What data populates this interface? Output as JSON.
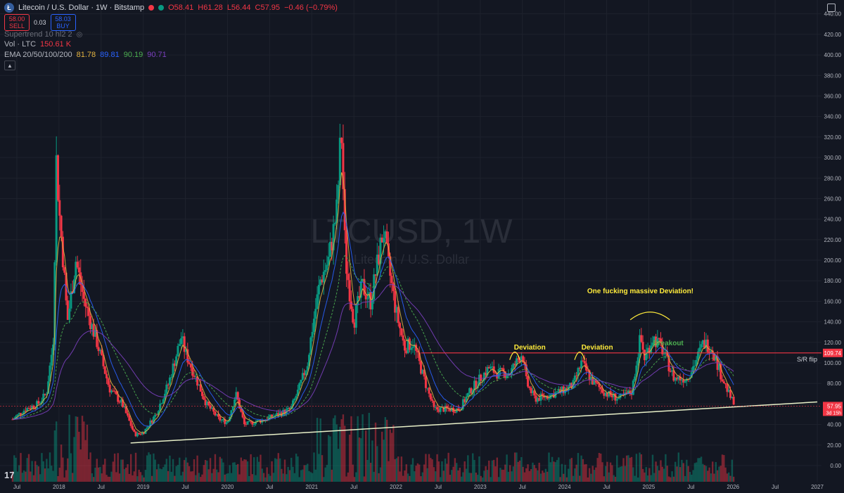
{
  "header": {
    "symbol_title": "Litecoin / U.S. Dollar · 1W · Bitstamp",
    "coin_letter": "Ł",
    "open": "O58.41",
    "high": "H61.28",
    "low": "L56.44",
    "close": "C57.95",
    "change": "−0.46 (−0.79%)",
    "sell_price": "58.00",
    "sell_label": "SELL",
    "spread": "0.03",
    "buy_price": "58.03",
    "buy_label": "BUY",
    "supertrend": "Supertrend 10 hl2 2",
    "vol_label": "Vol · LTC",
    "vol_value": "150.61 K",
    "ema_label": "EMA 20/50/100/200",
    "ema_values": [
      "81.78",
      "89.81",
      "90.19",
      "90.71"
    ],
    "collapse_icon": "chevron-up-icon"
  },
  "colors": {
    "bg": "#131722",
    "up": "#089981",
    "down": "#f23645",
    "grid": "#1e222d",
    "ema20": "#e3b341",
    "ema50": "#2962ff",
    "ema100": "#4caf50",
    "ema200": "#7b3fbf",
    "sr_line": "#f23645",
    "trend_line": "#e8f0c8",
    "annotation": "#ffeb3b",
    "breakout": "#4caf50"
  },
  "chart_data": {
    "type": "candlestick",
    "watermark_title": "LTCUSD, 1W",
    "watermark_subtitle": "Litecoin / U.S. Dollar",
    "ylim": [
      -13,
      448
    ],
    "y_ticks": [
      "0.00",
      "20.00",
      "40.00",
      "60.00",
      "80.00",
      "100.00",
      "120.00",
      "140.00",
      "160.00",
      "180.00",
      "200.00",
      "220.00",
      "240.00",
      "260.00",
      "280.00",
      "300.00",
      "320.00",
      "340.00",
      "360.00",
      "380.00",
      "400.00",
      "420.00",
      "440.00"
    ],
    "x_ticks": [
      {
        "label": "Jul",
        "t": 2017.5
      },
      {
        "label": "2018",
        "t": 2018.0
      },
      {
        "label": "Jul",
        "t": 2018.5
      },
      {
        "label": "2019",
        "t": 2019.0
      },
      {
        "label": "Jul",
        "t": 2019.5
      },
      {
        "label": "2020",
        "t": 2020.0
      },
      {
        "label": "Jul",
        "t": 2020.5
      },
      {
        "label": "2021",
        "t": 2021.0
      },
      {
        "label": "Jul",
        "t": 2021.5
      },
      {
        "label": "2022",
        "t": 2022.0
      },
      {
        "label": "Jul",
        "t": 2022.5
      },
      {
        "label": "2023",
        "t": 2023.0
      },
      {
        "label": "Jul",
        "t": 2023.5
      },
      {
        "label": "2024",
        "t": 2024.0
      },
      {
        "label": "Jul",
        "t": 2024.5
      },
      {
        "label": "2025",
        "t": 2025.0
      },
      {
        "label": "Jul",
        "t": 2025.5
      },
      {
        "label": "2026",
        "t": 2026.0
      },
      {
        "label": "Jul",
        "t": 2026.5
      },
      {
        "label": "2027",
        "t": 2027.0
      }
    ],
    "price_path": [
      [
        2017.45,
        45
      ],
      [
        2017.6,
        55
      ],
      [
        2017.75,
        60
      ],
      [
        2017.85,
        70
      ],
      [
        2017.93,
        120
      ],
      [
        2017.97,
        300
      ],
      [
        2018.0,
        250
      ],
      [
        2018.05,
        200
      ],
      [
        2018.1,
        140
      ],
      [
        2018.2,
        200
      ],
      [
        2018.3,
        160
      ],
      [
        2018.45,
        120
      ],
      [
        2018.6,
        75
      ],
      [
        2018.75,
        60
      ],
      [
        2018.9,
        30
      ],
      [
        2019.0,
        32
      ],
      [
        2019.15,
        50
      ],
      [
        2019.3,
        80
      ],
      [
        2019.45,
        125
      ],
      [
        2019.5,
        110
      ],
      [
        2019.6,
        90
      ],
      [
        2019.75,
        60
      ],
      [
        2019.9,
        45
      ],
      [
        2020.0,
        42
      ],
      [
        2020.1,
        70
      ],
      [
        2020.2,
        40
      ],
      [
        2020.3,
        42
      ],
      [
        2020.45,
        45
      ],
      [
        2020.6,
        50
      ],
      [
        2020.75,
        55
      ],
      [
        2020.85,
        75
      ],
      [
        2020.95,
        100
      ],
      [
        2021.0,
        130
      ],
      [
        2021.1,
        180
      ],
      [
        2021.2,
        200
      ],
      [
        2021.3,
        250
      ],
      [
        2021.35,
        330
      ],
      [
        2021.4,
        200
      ],
      [
        2021.5,
        140
      ],
      [
        2021.6,
        175
      ],
      [
        2021.7,
        160
      ],
      [
        2021.85,
        230
      ],
      [
        2021.9,
        200
      ],
      [
        2022.0,
        150
      ],
      [
        2022.1,
        115
      ],
      [
        2022.2,
        120
      ],
      [
        2022.35,
        80
      ],
      [
        2022.45,
        55
      ],
      [
        2022.6,
        55
      ],
      [
        2022.75,
        55
      ],
      [
        2022.9,
        75
      ],
      [
        2023.0,
        85
      ],
      [
        2023.1,
        95
      ],
      [
        2023.2,
        90
      ],
      [
        2023.35,
        90
      ],
      [
        2023.5,
        110
      ],
      [
        2023.55,
        80
      ],
      [
        2023.65,
        65
      ],
      [
        2023.8,
        68
      ],
      [
        2023.95,
        72
      ],
      [
        2024.1,
        78
      ],
      [
        2024.2,
        100
      ],
      [
        2024.35,
        80
      ],
      [
        2024.5,
        70
      ],
      [
        2024.65,
        65
      ],
      [
        2024.8,
        72
      ],
      [
        2024.9,
        125
      ],
      [
        2024.95,
        105
      ],
      [
        2025.05,
        125
      ],
      [
        2025.15,
        115
      ],
      [
        2025.3,
        85
      ],
      [
        2025.45,
        85
      ],
      [
        2025.55,
        100
      ],
      [
        2025.65,
        120
      ],
      [
        2025.75,
        115
      ],
      [
        2025.85,
        90
      ],
      [
        2025.95,
        70
      ],
      [
        2026.02,
        58
      ]
    ],
    "volume_bars": 60,
    "sr_level": 109.74,
    "sr_label": "S/R flip",
    "sr_price_label": "109.74",
    "current_price_label": "57.95",
    "countdown_label": "3d 15h",
    "trend_line": {
      "from": [
        2018.85,
        22
      ],
      "to": [
        2027.0,
        62
      ]
    },
    "annotations": [
      {
        "text": "Deviation",
        "t": 2023.4,
        "y": 113,
        "color": "#ffeb3b"
      },
      {
        "text": "Deviation",
        "t": 2024.2,
        "y": 113,
        "color": "#ffeb3b"
      },
      {
        "text": "One fucking massive Deviation!",
        "t": 2024.9,
        "y": 168,
        "color": "#ffeb3b"
      },
      {
        "text": "Breakout",
        "t": 2025.05,
        "y": 117,
        "color": "#4caf50"
      }
    ]
  }
}
